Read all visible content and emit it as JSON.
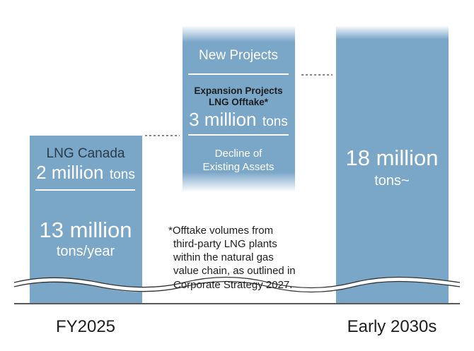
{
  "chart_data": {
    "type": "bar",
    "categories": [
      "FY2025",
      "Early 2030s"
    ],
    "unit": "million tons/year",
    "left_bar": {
      "category": "FY2025",
      "total_main": "13 million",
      "total_sub": "tons/year",
      "value": 13,
      "segment": {
        "name": "LNG Canada",
        "amount_main": "2 million",
        "amount_unit": "tons",
        "value": 2
      }
    },
    "middle_bar": {
      "title": "New Projects",
      "expansion_label_1": "Expansion Projects",
      "expansion_label_2": "LNG Offtake*",
      "amount_main": "3 million",
      "amount_unit": "tons",
      "value": 3,
      "decline_label_1": "Decline of",
      "decline_label_2": "Existing Assets"
    },
    "right_bar": {
      "category": "Early 2030s",
      "total_main": "18 million",
      "total_sub": "tons~",
      "value": 18
    },
    "footnote": [
      "*Offtake volumes from",
      "third-party LNG plants",
      "within the natural gas",
      "value chain, as outlined in",
      "Corporate Strategy 2027."
    ],
    "colors": {
      "bar": "#7aa6c8",
      "bar_light": "#cfe0ec",
      "text_on_bar": "#ffffff",
      "text_dark": "#1e1e1e",
      "label_dark": "#2a3b49",
      "divider": "#333333"
    }
  }
}
